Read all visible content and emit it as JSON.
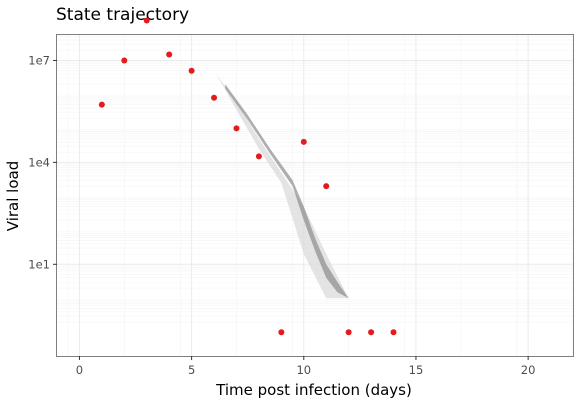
{
  "chart_data": {
    "type": "scatter",
    "title": "State trajectory",
    "xlabel": "Time post infection (days)",
    "ylabel": "Viral load",
    "xlim": [
      -1,
      22
    ],
    "ylim_log10": [
      -1.7,
      7.75
    ],
    "y_scale": "log10",
    "grid": true,
    "x_ticks": [
      {
        "value": 0,
        "label": "0"
      },
      {
        "value": 5,
        "label": "5"
      },
      {
        "value": 10,
        "label": "10"
      },
      {
        "value": 15,
        "label": "15"
      },
      {
        "value": 20,
        "label": "20"
      }
    ],
    "y_ticks": [
      {
        "log10": 1,
        "label": "1e1"
      },
      {
        "log10": 4,
        "label": "1e4"
      },
      {
        "log10": 7,
        "label": "1e7"
      }
    ],
    "points": {
      "color": "#e41a1c",
      "x": [
        1,
        2,
        3,
        4,
        5,
        6,
        7,
        8,
        9,
        10,
        11,
        12,
        13,
        14
      ],
      "y": [
        500000,
        10000000,
        150000000,
        15000000,
        5000000,
        800000,
        100000,
        15000,
        0.1,
        40000,
        2000,
        0.1,
        0.1,
        0.1
      ]
    },
    "bands": [
      {
        "color": "#d9d9d9",
        "x": [
          6.1,
          7,
          8,
          9,
          10,
          11,
          12
        ],
        "upper": [
          4000000,
          600000,
          50000,
          5000,
          500,
          20,
          1
        ],
        "lower": [
          4000000,
          350000,
          25000,
          2500,
          20,
          1,
          1
        ]
      },
      {
        "color": "#8c8c8c",
        "x": [
          6.5,
          7.5,
          8.5,
          9.5,
          10,
          10.5,
          11,
          11.5,
          12
        ],
        "upper": [
          2000000,
          250000,
          25000,
          3000,
          500,
          60,
          10,
          3,
          1
        ],
        "lower": [
          1500000,
          180000,
          18000,
          2000,
          200,
          25,
          4,
          1.5,
          1
        ]
      }
    ]
  }
}
